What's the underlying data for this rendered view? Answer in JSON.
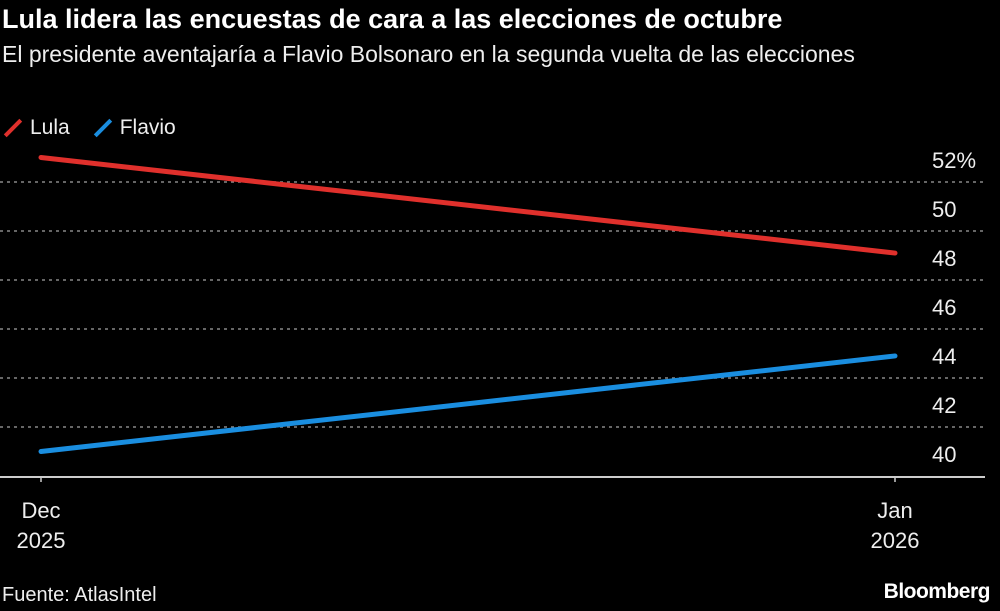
{
  "title": "Lula lidera las encuestas de cara a las elecciones de octubre",
  "subtitle": "El presidente aventajaría a Flavio Bolsonaro en la segunda vuelta de las elecciones",
  "source": "Fuente: AtlasIntel",
  "logo": "Bloomberg",
  "chart_data": {
    "type": "line",
    "x": [
      "Dec 2025",
      "Jan 2026"
    ],
    "x_tick_labels": [
      [
        "Dec",
        "2025"
      ],
      [
        "Jan",
        "2026"
      ]
    ],
    "series": [
      {
        "name": "Lula",
        "color": "#e0302c",
        "values": [
          53.0,
          49.1
        ]
      },
      {
        "name": "Flavio",
        "color": "#1a8ee0",
        "values": [
          41.0,
          44.9
        ]
      }
    ],
    "ylim": [
      40,
      52
    ],
    "y_ticks": [
      40,
      42,
      44,
      46,
      48,
      50,
      52
    ],
    "y_tick_labels": [
      "40",
      "42",
      "44",
      "46",
      "48",
      "50",
      "52%"
    ],
    "grid": true,
    "legend": "top-left",
    "y_axis_side": "right"
  }
}
